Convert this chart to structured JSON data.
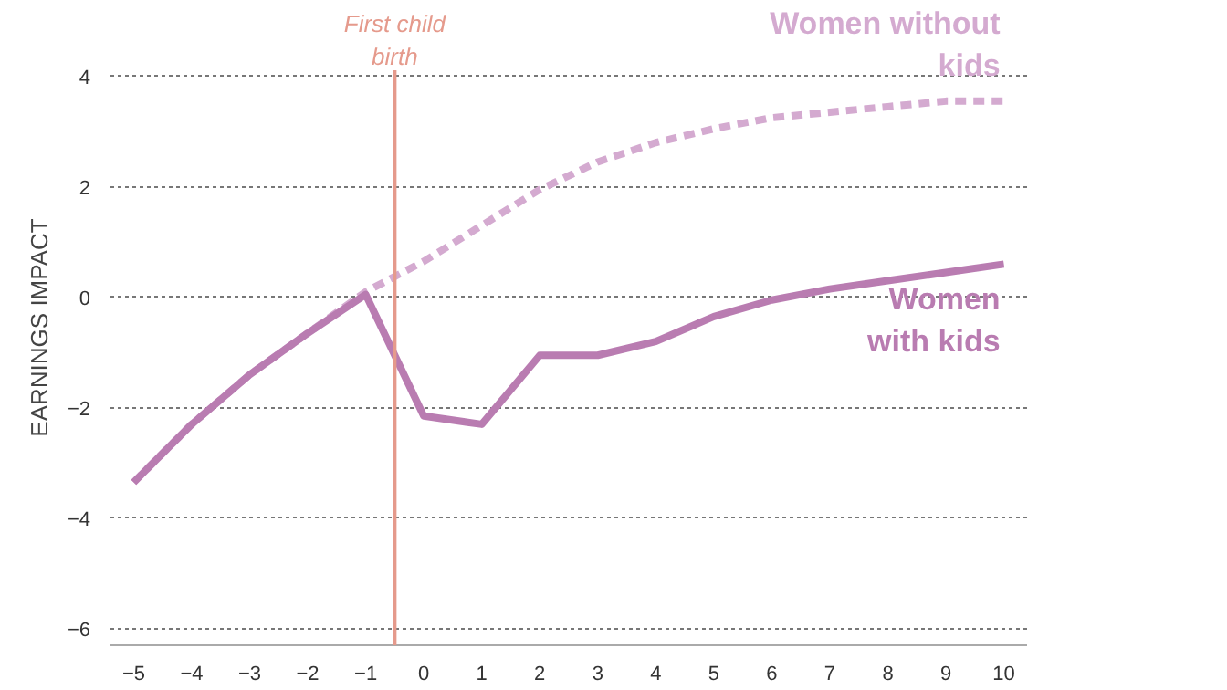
{
  "chart_data": {
    "type": "line",
    "ylabel": "EARNINGS IMPACT",
    "xlim": [
      -5.4,
      10.4
    ],
    "ylim": [
      -6.3,
      5.2
    ],
    "xticks": [
      -5,
      -4,
      -3,
      -2,
      -1,
      0,
      1,
      2,
      3,
      4,
      5,
      6,
      7,
      8,
      9,
      10
    ],
    "yticks": [
      -6,
      -4,
      -2,
      0,
      2,
      4
    ],
    "grid": "y",
    "series": [
      {
        "name": "Women without\nkids",
        "color": "#d4aad0",
        "line_style": "dashed",
        "x": [
          -5,
          -4,
          -3,
          -2,
          -1,
          0,
          1,
          2,
          3,
          4,
          5,
          6,
          7,
          8,
          9,
          10
        ],
        "values": [
          -3.35,
          -2.3,
          -1.4,
          -0.65,
          0.1,
          0.65,
          1.3,
          1.95,
          2.45,
          2.8,
          3.05,
          3.25,
          3.35,
          3.45,
          3.55,
          3.55
        ]
      },
      {
        "name": "Women\nwith kids",
        "color": "#b97cb1",
        "line_style": "solid",
        "x": [
          -5,
          -4,
          -3,
          -2,
          -1,
          0,
          1,
          2,
          3,
          4,
          5,
          6,
          7,
          8,
          9,
          10
        ],
        "values": [
          -3.35,
          -2.3,
          -1.4,
          -0.65,
          0.05,
          -2.15,
          -2.3,
          -1.05,
          -1.05,
          -0.8,
          -0.35,
          -0.05,
          0.15,
          0.3,
          0.45,
          0.6
        ]
      }
    ],
    "ref_lines": [
      {
        "axis": "x",
        "value": -0.5,
        "label": "First child\nbirth",
        "color": "#e59a8c"
      }
    ]
  }
}
